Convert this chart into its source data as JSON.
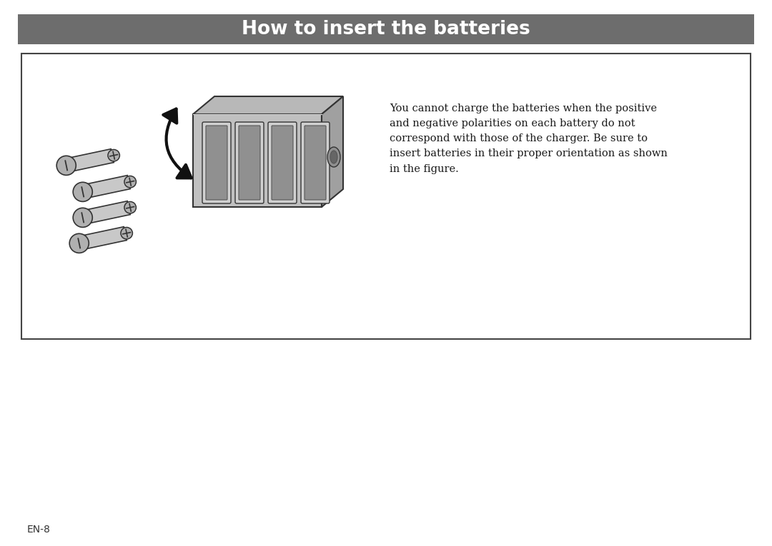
{
  "title": "How to insert the batteries",
  "title_bg_color": "#6d6d6d",
  "title_text_color": "#ffffff",
  "body_bg_color": "#ffffff",
  "page_label": "EN-8",
  "description": "You cannot charge the batteries when the positive\nand negative polarities on each battery do not\ncorrespond with those of the charger. Be sure to\ninsert batteries in their proper orientation as shown\nin the figure.",
  "charger_body_color": "#c0c0c0",
  "charger_dark_color": "#a0a0a0",
  "charger_slot_color": "#888888",
  "charger_outline": "#333333",
  "battery_body_color": "#c8c8c8",
  "battery_cap_color": "#b0b0b0",
  "battery_outline": "#333333",
  "arrow_color": "#111111"
}
